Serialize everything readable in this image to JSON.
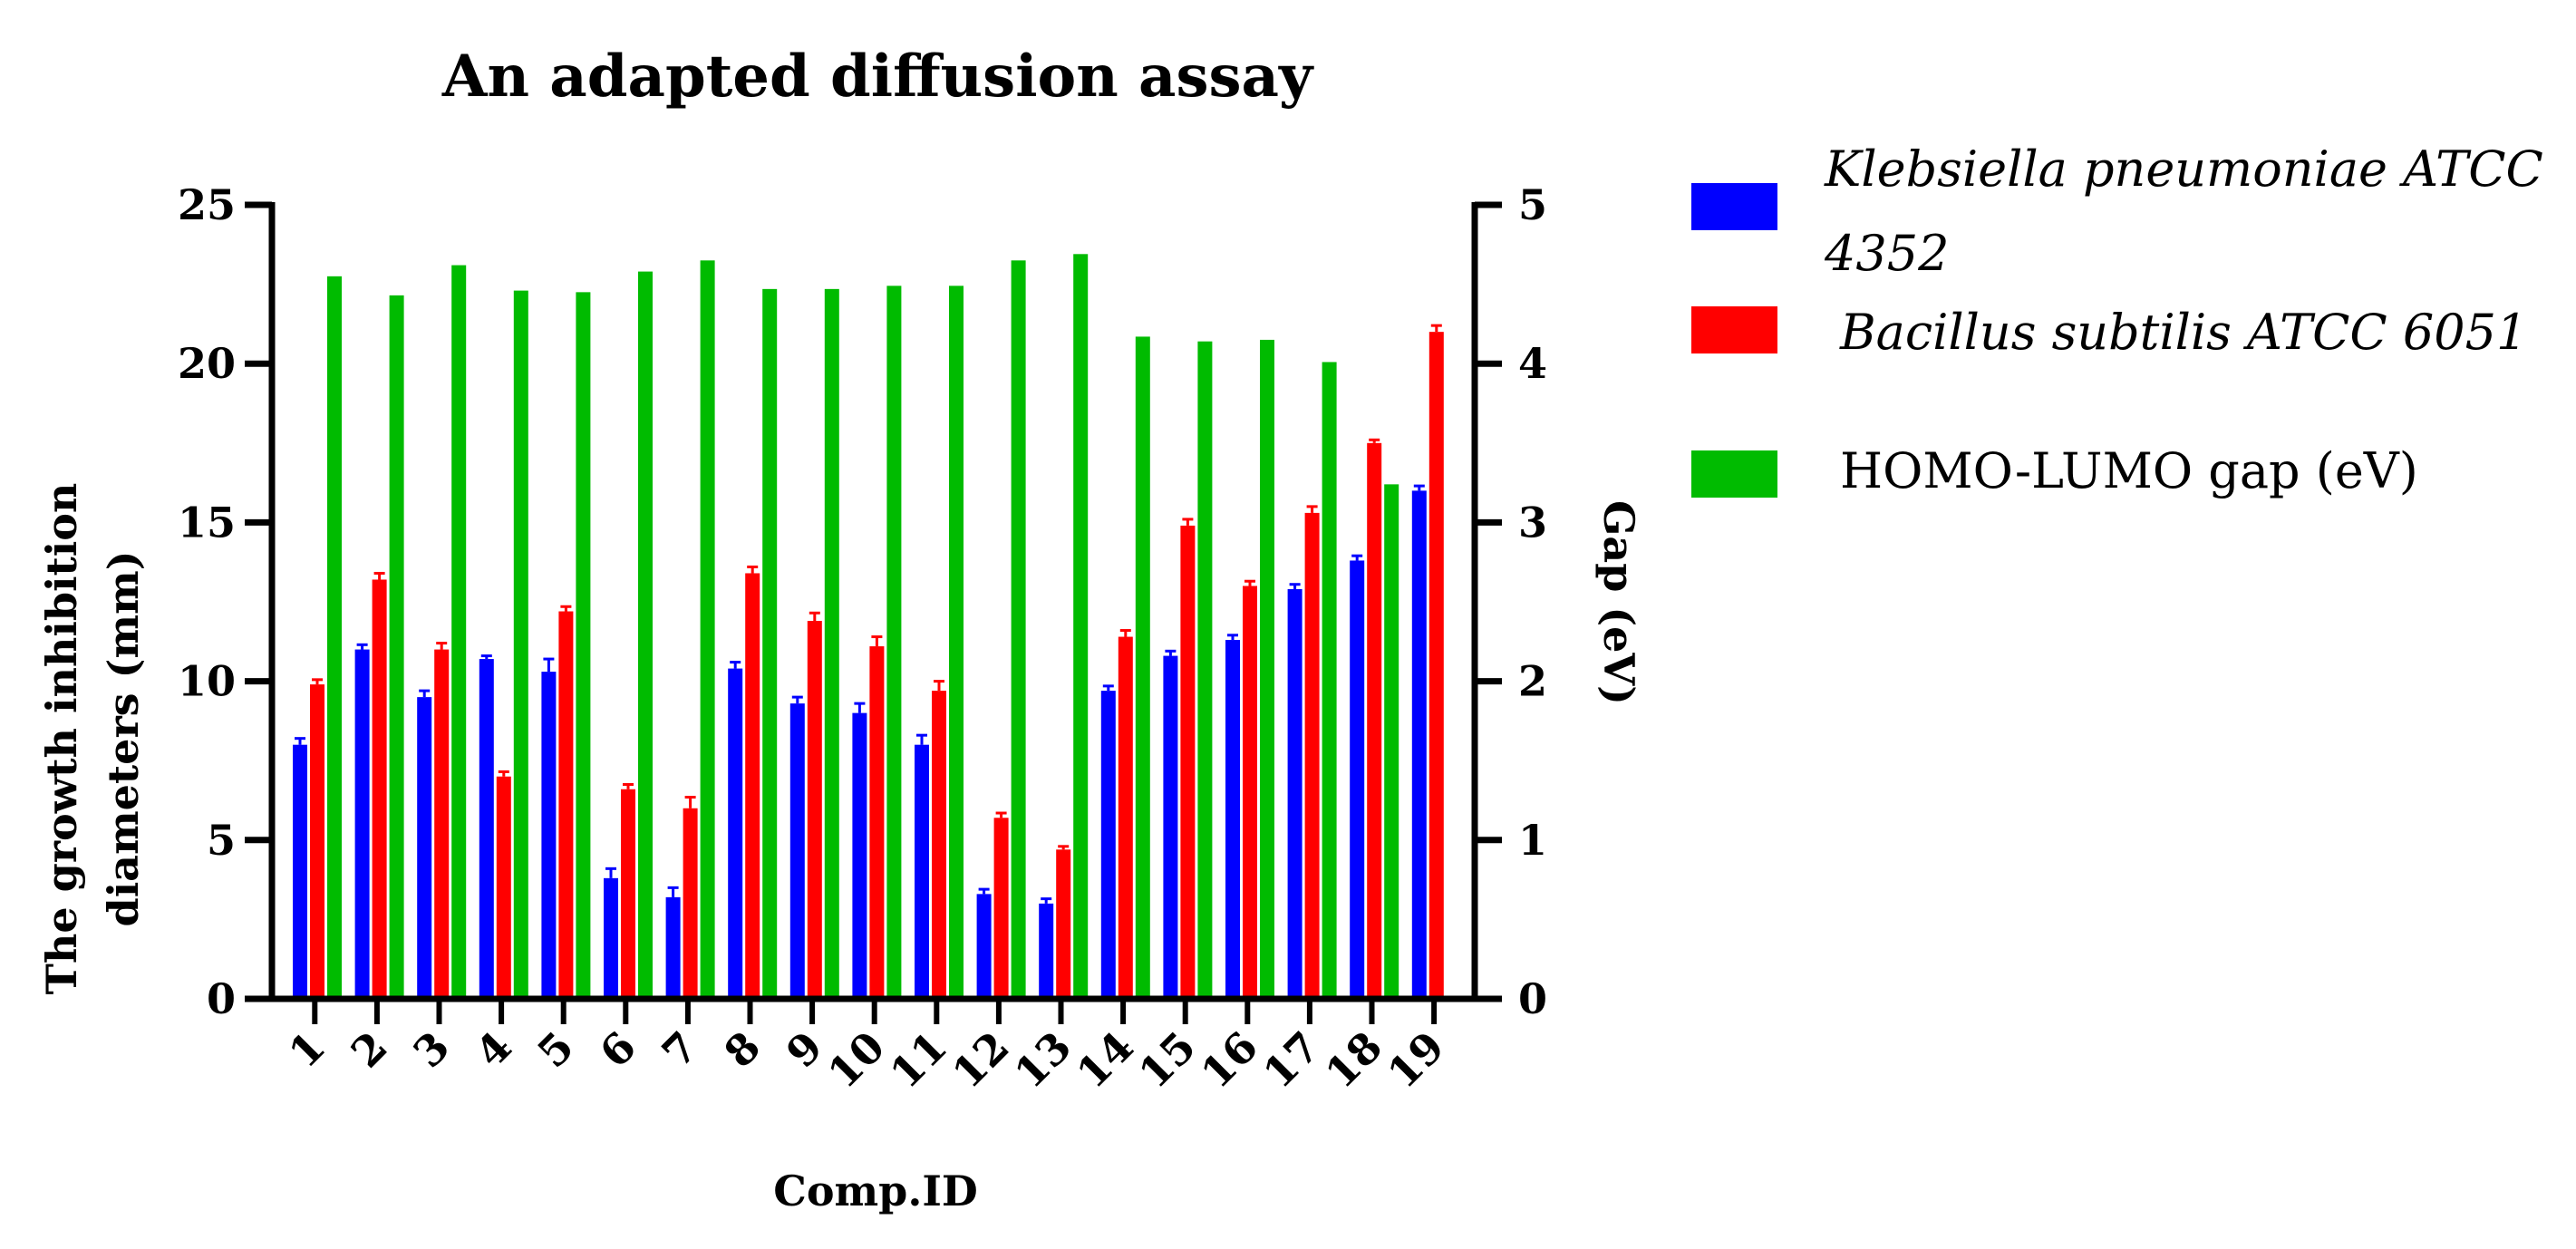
{
  "chart_data": {
    "type": "bar",
    "title": "An adapted diffusion assay",
    "xlabel": "Comp.ID",
    "ylabel": [
      "The growth inhibition",
      "diameters (mm)"
    ],
    "y2label": "Gap (eV)",
    "categories": [
      "1",
      "2",
      "3",
      "4",
      "5",
      "6",
      "7",
      "8",
      "9",
      "10",
      "11",
      "12",
      "13",
      "14",
      "15",
      "16",
      "17",
      "18",
      "19"
    ],
    "ylim": [
      0,
      25
    ],
    "yticks": [
      "0",
      "5",
      "10",
      "15",
      "20",
      "25"
    ],
    "y2lim": [
      0,
      5
    ],
    "y2ticks": [
      "0",
      "1",
      "2",
      "3",
      "4",
      "5"
    ],
    "series": [
      {
        "name": "Klebsiella pneumoniae ATCC 4352",
        "legend_lines": [
          "Klebsiella pneumoniae ATCC",
          "4352"
        ],
        "italic": true,
        "axis": "left",
        "color": "#0000ff",
        "values": [
          8.0,
          11.0,
          9.5,
          10.7,
          10.3,
          3.8,
          3.2,
          10.4,
          9.3,
          9.0,
          8.0,
          3.3,
          3.0,
          9.7,
          10.8,
          11.3,
          12.9,
          13.8,
          16.0
        ],
        "errors": [
          0.2,
          0.15,
          0.2,
          0.1,
          0.4,
          0.3,
          0.3,
          0.2,
          0.2,
          0.3,
          0.3,
          0.15,
          0.15,
          0.15,
          0.15,
          0.15,
          0.15,
          0.15,
          0.15
        ]
      },
      {
        "name": "Bacillus subtilis ATCC 6051",
        "legend_lines": [
          "Bacillus subtilis ATCC 6051"
        ],
        "italic": true,
        "axis": "left",
        "color": "#ff0000",
        "values": [
          9.9,
          13.2,
          11.0,
          7.0,
          12.2,
          6.6,
          6.0,
          13.4,
          11.9,
          11.1,
          9.7,
          5.7,
          4.7,
          11.4,
          14.9,
          13.0,
          15.3,
          17.5,
          21.0
        ],
        "errors": [
          0.15,
          0.2,
          0.2,
          0.15,
          0.15,
          0.15,
          0.35,
          0.2,
          0.25,
          0.3,
          0.3,
          0.15,
          0.1,
          0.2,
          0.2,
          0.15,
          0.2,
          0.1,
          0.2
        ]
      },
      {
        "name": "HOMO-LUMO gap (eV)",
        "legend_lines": [
          "HOMO-LUMO gap (eV)"
        ],
        "italic": false,
        "axis": "right",
        "color": "#00bb00",
        "values": [
          4.55,
          4.43,
          4.62,
          4.46,
          4.45,
          4.58,
          4.65,
          4.47,
          4.47,
          4.49,
          4.49,
          4.65,
          4.69,
          4.17,
          4.14,
          4.15,
          4.01,
          3.24,
          null
        ]
      }
    ],
    "legend_position": "right"
  }
}
